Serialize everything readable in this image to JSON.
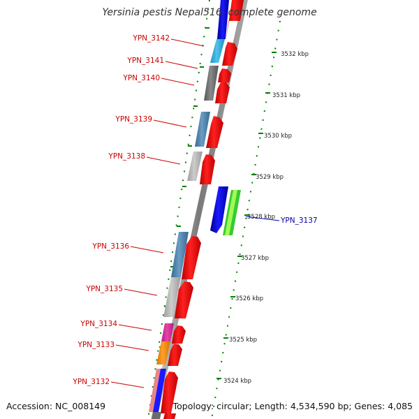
{
  "title": "Yersinia pestis Nepal516, complete genome",
  "accession": "Accession: NC_008149",
  "summary": "Topology: circular; Length: 4,534,590 bp; Genes: 4,085",
  "colors": {
    "forward_label": "#cc0000",
    "reverse_label": "#0000aa",
    "tick": "#008000",
    "backbone": "#888888"
  },
  "scale": {
    "unit": "kbp",
    "ticks": [
      {
        "value": 3524,
        "label": "3524 kbp"
      },
      {
        "value": 3525,
        "label": "3525 kbp"
      },
      {
        "value": 3526,
        "label": "3526 kbp"
      },
      {
        "value": 3527,
        "label": "3527 kbp"
      },
      {
        "value": 3528,
        "label": "3528 kbp"
      },
      {
        "value": 3529,
        "label": "3529 kbp"
      },
      {
        "value": 3530,
        "label": "3530 kbp"
      },
      {
        "value": 3531,
        "label": "3531 kbp"
      },
      {
        "value": 3532,
        "label": "3532 kbp"
      }
    ]
  },
  "genes": [
    {
      "name": "YPN_3142",
      "strand": "forward",
      "cog_color": "#22b4e6"
    },
    {
      "name": "YPN_3141",
      "strand": "forward",
      "cog_color": "#6b6b6b"
    },
    {
      "name": "YPN_3140",
      "strand": "forward",
      "cog_color": "#6b6b6b"
    },
    {
      "name": "YPN_3139",
      "strand": "forward",
      "cog_color": "#4682b4"
    },
    {
      "name": "YPN_3138",
      "strand": "forward",
      "cog_color": "#c0c0c0"
    },
    {
      "name": "YPN_3137",
      "strand": "reverse",
      "cog_color": "#33cc33"
    },
    {
      "name": "YPN_3136",
      "strand": "forward",
      "cog_color": "#4682b4"
    },
    {
      "name": "YPN_3135",
      "strand": "forward",
      "cog_color": "#c0c0c0"
    },
    {
      "name": "YPN_3134",
      "strand": "forward",
      "cog_color": "#e0209a"
    },
    {
      "name": "YPN_3133",
      "strand": "forward",
      "cog_color": "#ff8c00"
    },
    {
      "name": "YPN_3132",
      "strand": "forward",
      "cog_color": "#e8848c"
    }
  ]
}
